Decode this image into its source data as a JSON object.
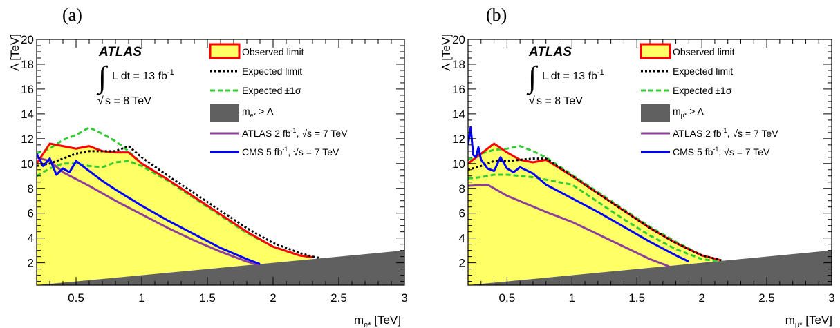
{
  "panels": [
    {
      "panel_label": "(a)",
      "experiment": "ATLAS",
      "lumi_text": "L dt = 13 fb",
      "lumi_exp": "-1",
      "sqrt_s_text": "s = 8 TeV",
      "legend": {
        "observed": "Observed limit",
        "expected": "Expected limit",
        "band": "Expected",
        "band_suffix": "±1σ",
        "excluded_main": "m",
        "excluded_sub": "e*",
        "excluded_rest": " > Λ",
        "atlas_prev_a": "ATLAS 2 fb",
        "atlas_prev_exp": "-1",
        "atlas_prev_b": ", √s = 7 TeV",
        "cms_a": "CMS 5 fb",
        "cms_exp": "-1",
        "cms_b": ", √s = 7 TeV"
      },
      "xlabel_main": "m",
      "xlabel_sub": "e*",
      "xlabel_unit": " [TeV]",
      "ylabel": "Λ [TeV]",
      "x_ticks": [
        "0.5",
        "1",
        "1.5",
        "2",
        "2.5",
        "3"
      ],
      "y_ticks": [
        "2",
        "4",
        "6",
        "8",
        "10",
        "12",
        "14",
        "16",
        "18",
        "20"
      ]
    },
    {
      "panel_label": "(b)",
      "experiment": "ATLAS",
      "lumi_text": "L dt = 13 fb",
      "lumi_exp": "-1",
      "sqrt_s_text": "s = 8 TeV",
      "legend": {
        "observed": "Observed limit",
        "expected": "Expected limit",
        "band": "Expected",
        "band_suffix": "±1σ",
        "excluded_main": "m",
        "excluded_sub": "μ*",
        "excluded_rest": " > Λ",
        "atlas_prev_a": "ATLAS 2 fb",
        "atlas_prev_exp": "-1",
        "atlas_prev_b": ", √s = 7 TeV",
        "cms_a": "CMS 5 fb",
        "cms_exp": "-1",
        "cms_b": ", √s = 7 TeV"
      },
      "xlabel_main": "m",
      "xlabel_sub": "μ*",
      "xlabel_unit": " [TeV]",
      "ylabel": "Λ [TeV]",
      "x_ticks": [
        "0.5",
        "1",
        "1.5",
        "2",
        "2.5",
        "3"
      ],
      "y_ticks": [
        "2",
        "4",
        "6",
        "8",
        "10",
        "12",
        "14",
        "16",
        "18",
        "20"
      ]
    }
  ],
  "colors": {
    "observed": "#ff0000",
    "excluded_fill": "#ffff66",
    "expected": "#000000",
    "band": "#33cc33",
    "kinematic": "#606060",
    "atlas_prev": "#8e3f9a",
    "cms": "#0000ff"
  },
  "chart_data": [
    {
      "type": "line",
      "xlim": [
        0.2,
        3.0
      ],
      "ylim": [
        0.2,
        20
      ],
      "grid": false,
      "legend_position": "top-right",
      "series": [
        {
          "name": "Observed limit",
          "x": [
            0.2,
            0.3,
            0.4,
            0.5,
            0.6,
            0.7,
            0.8,
            0.9,
            1.0,
            1.2,
            1.4,
            1.6,
            1.8,
            2.0,
            2.2,
            2.3
          ],
          "y": [
            10.0,
            11.6,
            11.4,
            11.2,
            11.4,
            11.0,
            10.9,
            10.9,
            10.0,
            8.7,
            7.3,
            5.9,
            4.5,
            3.3,
            2.6,
            2.45
          ]
        },
        {
          "name": "Expected limit",
          "x": [
            0.2,
            0.3,
            0.4,
            0.5,
            0.6,
            0.7,
            0.8,
            0.9,
            1.0,
            1.2,
            1.4,
            1.6,
            1.8,
            2.0,
            2.2,
            2.3,
            2.35
          ],
          "y": [
            9.8,
            10.0,
            10.4,
            10.8,
            11.0,
            11.0,
            11.0,
            11.4,
            10.5,
            9.0,
            7.6,
            6.2,
            4.8,
            3.6,
            2.8,
            2.5,
            2.4
          ]
        },
        {
          "name": "Expected +1σ",
          "x": [
            0.2,
            0.3,
            0.4,
            0.5,
            0.6,
            0.7,
            0.8,
            0.9,
            1.0,
            1.2,
            1.4,
            1.6,
            1.8,
            2.0,
            2.2,
            2.3
          ],
          "y": [
            10.8,
            11.2,
            11.9,
            12.3,
            12.9,
            12.4,
            11.8,
            11.0,
            10.0,
            8.7,
            7.3,
            5.9,
            4.5,
            3.3,
            2.6,
            2.45
          ]
        },
        {
          "name": "Expected -1σ",
          "x": [
            0.2,
            0.3,
            0.4,
            0.5,
            0.6,
            0.7,
            0.8,
            0.9,
            1.0,
            1.2,
            1.4,
            1.6,
            1.8,
            2.0,
            2.2,
            2.3
          ],
          "y": [
            9.0,
            9.6,
            10.0,
            10.0,
            9.8,
            9.7,
            10.1,
            10.2,
            9.8,
            8.6,
            7.2,
            5.8,
            4.4,
            3.3,
            2.6,
            2.45
          ]
        },
        {
          "name": "ATLAS 2 fb-1, √s = 7 TeV",
          "x": [
            0.2,
            0.3,
            0.4,
            0.6,
            0.8,
            1.0,
            1.2,
            1.4,
            1.6,
            1.8,
            1.9
          ],
          "y": [
            10.5,
            10.2,
            9.3,
            8.2,
            7.0,
            5.9,
            4.8,
            3.8,
            2.9,
            2.1,
            1.8
          ]
        },
        {
          "name": "CMS 5 fb-1, √s = 7 TeV",
          "x": [
            0.2,
            0.25,
            0.3,
            0.35,
            0.4,
            0.45,
            0.5,
            0.6,
            0.7,
            0.8,
            1.0,
            1.2,
            1.4,
            1.6,
            1.8,
            1.9
          ],
          "y": [
            10.8,
            9.8,
            10.4,
            9.1,
            9.6,
            9.3,
            10.2,
            9.4,
            8.6,
            7.9,
            6.6,
            5.4,
            4.3,
            3.2,
            2.3,
            1.9
          ]
        },
        {
          "name": "m_e* > Λ",
          "x": [
            0.2,
            3.0
          ],
          "y": [
            0.2,
            3.0
          ]
        }
      ]
    },
    {
      "type": "line",
      "xlim": [
        0.2,
        3.0
      ],
      "ylim": [
        0.2,
        20
      ],
      "grid": false,
      "legend_position": "top-right",
      "series": [
        {
          "name": "Observed limit",
          "x": [
            0.2,
            0.3,
            0.4,
            0.5,
            0.6,
            0.7,
            0.8,
            1.0,
            1.2,
            1.4,
            1.6,
            1.8,
            2.0,
            2.15
          ],
          "y": [
            10.0,
            10.8,
            11.6,
            10.9,
            10.3,
            10.1,
            10.3,
            9.0,
            7.6,
            6.2,
            4.8,
            3.6,
            2.6,
            2.2
          ]
        },
        {
          "name": "Expected limit",
          "x": [
            0.2,
            0.3,
            0.4,
            0.5,
            0.6,
            0.7,
            0.8,
            1.0,
            1.2,
            1.4,
            1.6,
            1.8,
            2.0,
            2.15
          ],
          "y": [
            9.5,
            9.8,
            10.2,
            10.2,
            10.3,
            10.4,
            10.4,
            9.0,
            7.6,
            6.2,
            4.8,
            3.6,
            2.6,
            2.2
          ]
        },
        {
          "name": "Expected +1σ",
          "x": [
            0.2,
            0.3,
            0.4,
            0.5,
            0.6,
            0.7,
            0.8,
            1.0,
            1.2,
            1.4,
            1.6,
            1.8,
            2.0,
            2.15
          ],
          "y": [
            10.3,
            10.8,
            11.1,
            11.2,
            11.4,
            11.0,
            10.5,
            9.1,
            7.7,
            6.3,
            4.9,
            3.7,
            2.6,
            2.2
          ]
        },
        {
          "name": "Expected -1σ",
          "x": [
            0.2,
            0.3,
            0.4,
            0.5,
            0.6,
            0.7,
            0.8,
            1.0,
            1.2,
            1.4,
            1.6,
            1.8,
            2.0,
            2.15
          ],
          "y": [
            8.8,
            8.9,
            9.1,
            9.1,
            9.0,
            8.9,
            8.7,
            8.3,
            6.9,
            5.5,
            4.2,
            3.1,
            2.3,
            2.1
          ]
        },
        {
          "name": "ATLAS 2 fb-1, √s = 7 TeV",
          "x": [
            0.2,
            0.35,
            0.5,
            0.8,
            1.0,
            1.2,
            1.4,
            1.6,
            1.75
          ],
          "y": [
            8.2,
            8.3,
            7.4,
            6.1,
            5.3,
            4.3,
            3.3,
            2.3,
            1.7
          ]
        },
        {
          "name": "CMS 5 fb-1, √s = 7 TeV",
          "x": [
            0.2,
            0.22,
            0.24,
            0.26,
            0.28,
            0.3,
            0.35,
            0.4,
            0.45,
            0.5,
            0.55,
            0.6,
            0.7,
            0.8,
            1.0,
            1.2,
            1.4,
            1.6,
            1.8,
            1.9
          ],
          "y": [
            11.5,
            12.9,
            10.7,
            10.5,
            11.3,
            10.3,
            9.6,
            9.4,
            10.5,
            9.6,
            9.3,
            9.7,
            9.2,
            8.3,
            7.2,
            6.1,
            4.9,
            3.7,
            2.6,
            2.1
          ]
        },
        {
          "name": "m_μ* > Λ",
          "x": [
            0.2,
            3.0
          ],
          "y": [
            0.2,
            3.0
          ]
        }
      ]
    }
  ]
}
